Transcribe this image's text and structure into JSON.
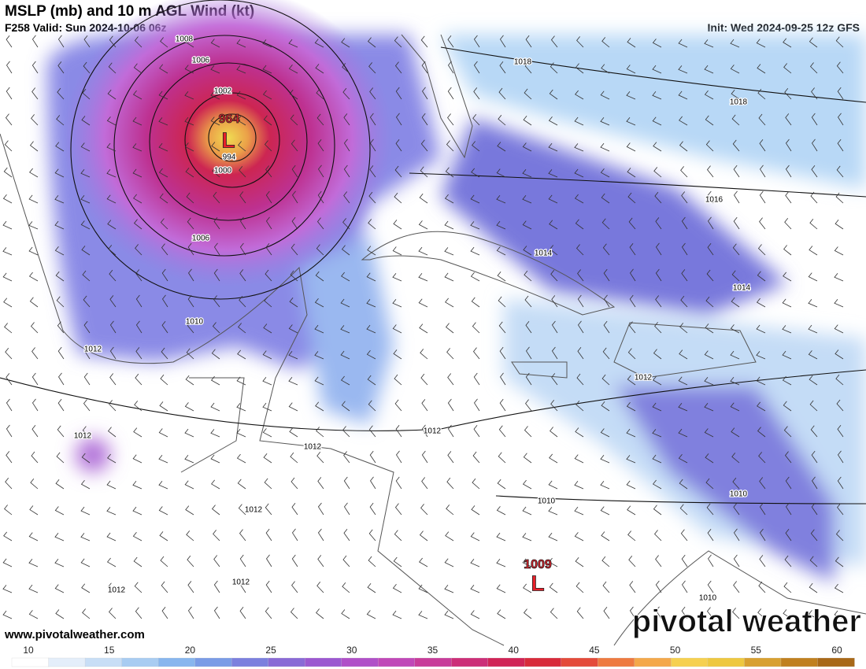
{
  "header": {
    "title": "MSLP (mb) and 10 m AGL Wind (kt)",
    "valid": "F258 Valid: Sun 2024-10-06 06z",
    "init": "Init: Wed 2024-09-25 12z GFS"
  },
  "isobars": [
    1008,
    1006,
    1002,
    1000,
    994,
    1006,
    1010,
    1012,
    1018,
    1018,
    1016,
    1014,
    1014,
    1012,
    1012,
    1012,
    1012,
    1012,
    1010,
    1010,
    1012,
    1012,
    1010
  ],
  "lows": [
    {
      "pressure": 964,
      "label": "L"
    },
    {
      "pressure": 1009,
      "label": "L"
    }
  ],
  "footer": {
    "url": "www.pivotalweather.com",
    "logo": "pivotal weather"
  },
  "colorbar": {
    "ticks": [
      10,
      15,
      20,
      25,
      30,
      35,
      40,
      45,
      50,
      55,
      60
    ]
  }
}
